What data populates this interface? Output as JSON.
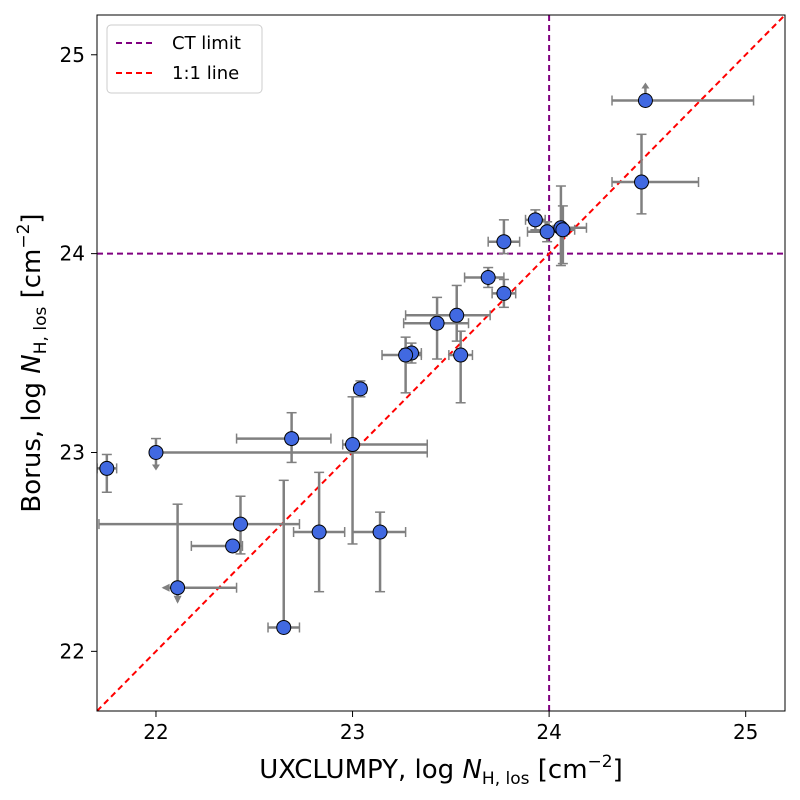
{
  "chart_data": {
    "type": "scatter",
    "xlabel": {
      "main": "UXCLUMPY, log ",
      "var": "N",
      "sub": "H, los",
      "unit": " [cm",
      "exp": "−2",
      "close": "]"
    },
    "ylabel": {
      "main": "Borus, log ",
      "var": "N",
      "sub": "H, los",
      "unit": " [cm",
      "exp": "−2",
      "close": "]"
    },
    "xlim": [
      21.7,
      25.2
    ],
    "ylim": [
      21.7,
      25.2
    ],
    "xticks": [
      "22",
      "23",
      "24",
      "25"
    ],
    "yticks": [
      "22",
      "23",
      "24",
      "25"
    ],
    "legend": {
      "position": "top-left",
      "entries": [
        {
          "label": "CT limit",
          "color": "#800080"
        },
        {
          "label": "1:1 line",
          "color": "#ff0000"
        }
      ]
    },
    "ct_limit": 24,
    "colors": {
      "point": "#4169e1",
      "errorbar": "#808080",
      "ct": "#800080",
      "oneone": "#ff0000"
    },
    "points": [
      {
        "x": 24.49,
        "y": 24.77,
        "xerr": [
          0.17,
          0.55
        ],
        "yerr": [
          0.0,
          0.0
        ],
        "upper_y": false,
        "lower_y": true
      },
      {
        "x": 24.47,
        "y": 24.36,
        "xerr": [
          0.15,
          0.29
        ],
        "yerr": [
          0.16,
          0.24
        ],
        "upper_y": false
      },
      {
        "x": 23.93,
        "y": 24.17,
        "xerr": [
          0.05,
          0.05
        ],
        "yerr": [
          0.05,
          0.05
        ]
      },
      {
        "x": 23.99,
        "y": 24.11,
        "xerr": [
          0.1,
          0.1
        ],
        "yerr": [
          0.05,
          0.05
        ]
      },
      {
        "x": 24.06,
        "y": 24.13,
        "xerr": [
          0.06,
          0.13
        ],
        "yerr": [
          0.19,
          0.21
        ]
      },
      {
        "x": 24.07,
        "y": 24.12,
        "xerr": [
          0.05,
          0.06
        ],
        "yerr": [
          0.17,
          0.12
        ]
      },
      {
        "x": 23.77,
        "y": 24.06,
        "xerr": [
          0.08,
          0.08
        ],
        "yerr": [
          0.06,
          0.11
        ]
      },
      {
        "x": 23.69,
        "y": 23.88,
        "xerr": [
          0.12,
          0.08
        ],
        "yerr": [
          0.05,
          0.05
        ]
      },
      {
        "x": 23.77,
        "y": 23.8,
        "xerr": [
          0.06,
          0.06
        ],
        "yerr": [
          0.07,
          0.07
        ]
      },
      {
        "x": 23.53,
        "y": 23.69,
        "xerr": [
          0.26,
          0.17
        ],
        "yerr": [
          0.13,
          0.15
        ]
      },
      {
        "x": 23.43,
        "y": 23.65,
        "xerr": [
          0.17,
          0.16
        ],
        "yerr": [
          0.18,
          0.13
        ]
      },
      {
        "x": 23.3,
        "y": 23.5,
        "xerr": [
          0.05,
          0.05
        ],
        "yerr": [
          0.05,
          0.05
        ]
      },
      {
        "x": 23.27,
        "y": 23.49,
        "xerr": [
          0.12,
          0.08
        ],
        "yerr": [
          0.19,
          0.09
        ]
      },
      {
        "x": 23.55,
        "y": 23.49,
        "xerr": [
          0.06,
          0.06
        ],
        "yerr": [
          0.24,
          0.12
        ]
      },
      {
        "x": 23.04,
        "y": 23.32,
        "xerr": [
          0.03,
          0.03
        ],
        "yerr": [
          0.04,
          0.04
        ]
      },
      {
        "x": 22.69,
        "y": 23.07,
        "xerr": [
          0.28,
          0.2
        ],
        "yerr": [
          0.12,
          0.13
        ]
      },
      {
        "x": 23.0,
        "y": 23.04,
        "xerr": [
          0.05,
          0.38
        ],
        "yerr": [
          0.5,
          0.24
        ]
      },
      {
        "x": 22.0,
        "y": 23.0,
        "xerr": [
          0.0,
          1.38
        ],
        "yerr": [
          0.0,
          0.07
        ],
        "lower_arrow": true
      },
      {
        "x": 21.75,
        "y": 22.92,
        "xerr": [
          0.05,
          0.05
        ],
        "yerr": [
          0.12,
          0.07
        ]
      },
      {
        "x": 22.43,
        "y": 22.64,
        "xerr": [
          0.72,
          0.3
        ],
        "yerr": [
          0.15,
          0.14
        ]
      },
      {
        "x": 22.39,
        "y": 22.53,
        "xerr": [
          0.21,
          0.05
        ],
        "yerr": [
          0.0,
          0.0
        ]
      },
      {
        "x": 22.83,
        "y": 22.6,
        "xerr": [
          0.13,
          0.13
        ],
        "yerr": [
          0.3,
          0.3
        ]
      },
      {
        "x": 23.14,
        "y": 22.6,
        "xerr": [
          0.14,
          0.13
        ],
        "yerr": [
          0.3,
          0.1
        ]
      },
      {
        "x": 22.11,
        "y": 22.32,
        "xerr": [
          0.05,
          0.3
        ],
        "yerr": [
          0.05,
          0.42
        ],
        "left_arrow": true,
        "down_arrow": true
      },
      {
        "x": 22.65,
        "y": 22.12,
        "xerr": [
          0.08,
          0.08
        ],
        "yerr": [
          0.0,
          0.74
        ]
      }
    ]
  }
}
